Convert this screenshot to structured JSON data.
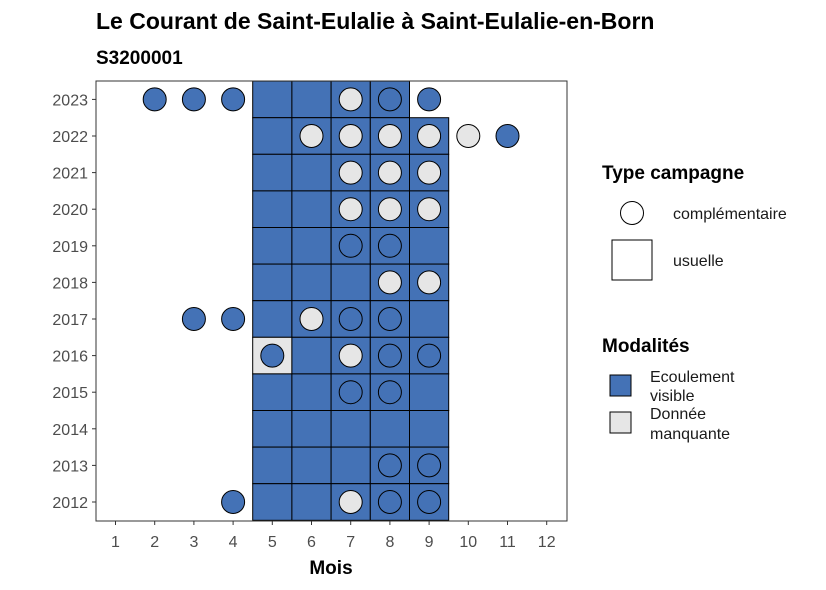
{
  "chart_data": {
    "type": "heatmap",
    "title": "Le Courant de Saint-Eulalie à Saint-Eulalie-en-Born",
    "subtitle": "S3200001",
    "xlabel": "Mois",
    "ylabel": "",
    "x_ticks": [
      1,
      2,
      3,
      4,
      5,
      6,
      7,
      8,
      9,
      10,
      11,
      12
    ],
    "y_ticks": [
      2012,
      2013,
      2014,
      2015,
      2016,
      2017,
      2018,
      2019,
      2020,
      2021,
      2022,
      2023
    ],
    "grid": false,
    "legend_position": "right",
    "colors": {
      "ecoulement_visible": "#4472b6",
      "donnee_manquante": "#e6e6e6",
      "outline": "#000000"
    },
    "legend_type": {
      "title": "Type campagne",
      "items": [
        {
          "shape": "circle",
          "label": "complémentaire"
        },
        {
          "shape": "square",
          "label": "usuelle"
        }
      ]
    },
    "legend_modalites": {
      "title": "Modalités",
      "items": [
        {
          "color": "#4472b6",
          "label_lines": [
            "Ecoulement",
            "visible"
          ]
        },
        {
          "color": "#e6e6e6",
          "label_lines": [
            "Donnée",
            "manquante"
          ]
        }
      ]
    },
    "usuelle": [
      {
        "year": 2023,
        "month": 5,
        "modalite": "ecoulement_visible"
      },
      {
        "year": 2023,
        "month": 6,
        "modalite": "ecoulement_visible"
      },
      {
        "year": 2023,
        "month": 7,
        "modalite": "ecoulement_visible"
      },
      {
        "year": 2023,
        "month": 8,
        "modalite": "ecoulement_visible"
      },
      {
        "year": 2022,
        "month": 5,
        "modalite": "ecoulement_visible"
      },
      {
        "year": 2022,
        "month": 6,
        "modalite": "ecoulement_visible"
      },
      {
        "year": 2022,
        "month": 7,
        "modalite": "ecoulement_visible"
      },
      {
        "year": 2022,
        "month": 8,
        "modalite": "ecoulement_visible"
      },
      {
        "year": 2022,
        "month": 9,
        "modalite": "ecoulement_visible"
      },
      {
        "year": 2021,
        "month": 5,
        "modalite": "ecoulement_visible"
      },
      {
        "year": 2021,
        "month": 6,
        "modalite": "ecoulement_visible"
      },
      {
        "year": 2021,
        "month": 7,
        "modalite": "ecoulement_visible"
      },
      {
        "year": 2021,
        "month": 8,
        "modalite": "ecoulement_visible"
      },
      {
        "year": 2021,
        "month": 9,
        "modalite": "ecoulement_visible"
      },
      {
        "year": 2020,
        "month": 5,
        "modalite": "ecoulement_visible"
      },
      {
        "year": 2020,
        "month": 6,
        "modalite": "ecoulement_visible"
      },
      {
        "year": 2020,
        "month": 7,
        "modalite": "ecoulement_visible"
      },
      {
        "year": 2020,
        "month": 8,
        "modalite": "ecoulement_visible"
      },
      {
        "year": 2020,
        "month": 9,
        "modalite": "ecoulement_visible"
      },
      {
        "year": 2019,
        "month": 5,
        "modalite": "ecoulement_visible"
      },
      {
        "year": 2019,
        "month": 6,
        "modalite": "ecoulement_visible"
      },
      {
        "year": 2019,
        "month": 7,
        "modalite": "ecoulement_visible"
      },
      {
        "year": 2019,
        "month": 8,
        "modalite": "ecoulement_visible"
      },
      {
        "year": 2019,
        "month": 9,
        "modalite": "ecoulement_visible"
      },
      {
        "year": 2018,
        "month": 5,
        "modalite": "ecoulement_visible"
      },
      {
        "year": 2018,
        "month": 6,
        "modalite": "ecoulement_visible"
      },
      {
        "year": 2018,
        "month": 7,
        "modalite": "ecoulement_visible"
      },
      {
        "year": 2018,
        "month": 8,
        "modalite": "ecoulement_visible"
      },
      {
        "year": 2018,
        "month": 9,
        "modalite": "ecoulement_visible"
      },
      {
        "year": 2017,
        "month": 5,
        "modalite": "ecoulement_visible"
      },
      {
        "year": 2017,
        "month": 6,
        "modalite": "ecoulement_visible"
      },
      {
        "year": 2017,
        "month": 7,
        "modalite": "ecoulement_visible"
      },
      {
        "year": 2017,
        "month": 8,
        "modalite": "ecoulement_visible"
      },
      {
        "year": 2017,
        "month": 9,
        "modalite": "ecoulement_visible"
      },
      {
        "year": 2016,
        "month": 5,
        "modalite": "donnee_manquante"
      },
      {
        "year": 2016,
        "month": 6,
        "modalite": "ecoulement_visible"
      },
      {
        "year": 2016,
        "month": 7,
        "modalite": "ecoulement_visible"
      },
      {
        "year": 2016,
        "month": 8,
        "modalite": "ecoulement_visible"
      },
      {
        "year": 2016,
        "month": 9,
        "modalite": "ecoulement_visible"
      },
      {
        "year": 2015,
        "month": 5,
        "modalite": "ecoulement_visible"
      },
      {
        "year": 2015,
        "month": 6,
        "modalite": "ecoulement_visible"
      },
      {
        "year": 2015,
        "month": 7,
        "modalite": "ecoulement_visible"
      },
      {
        "year": 2015,
        "month": 8,
        "modalite": "ecoulement_visible"
      },
      {
        "year": 2015,
        "month": 9,
        "modalite": "ecoulement_visible"
      },
      {
        "year": 2014,
        "month": 5,
        "modalite": "ecoulement_visible"
      },
      {
        "year": 2014,
        "month": 6,
        "modalite": "ecoulement_visible"
      },
      {
        "year": 2014,
        "month": 7,
        "modalite": "ecoulement_visible"
      },
      {
        "year": 2014,
        "month": 8,
        "modalite": "ecoulement_visible"
      },
      {
        "year": 2014,
        "month": 9,
        "modalite": "ecoulement_visible"
      },
      {
        "year": 2013,
        "month": 5,
        "modalite": "ecoulement_visible"
      },
      {
        "year": 2013,
        "month": 6,
        "modalite": "ecoulement_visible"
      },
      {
        "year": 2013,
        "month": 7,
        "modalite": "ecoulement_visible"
      },
      {
        "year": 2013,
        "month": 8,
        "modalite": "ecoulement_visible"
      },
      {
        "year": 2013,
        "month": 9,
        "modalite": "ecoulement_visible"
      },
      {
        "year": 2012,
        "month": 5,
        "modalite": "ecoulement_visible"
      },
      {
        "year": 2012,
        "month": 6,
        "modalite": "ecoulement_visible"
      },
      {
        "year": 2012,
        "month": 7,
        "modalite": "ecoulement_visible"
      },
      {
        "year": 2012,
        "month": 8,
        "modalite": "ecoulement_visible"
      },
      {
        "year": 2012,
        "month": 9,
        "modalite": "ecoulement_visible"
      }
    ],
    "complementaire": [
      {
        "year": 2023,
        "month": 2,
        "modalite": "ecoulement_visible"
      },
      {
        "year": 2023,
        "month": 3,
        "modalite": "ecoulement_visible"
      },
      {
        "year": 2023,
        "month": 4,
        "modalite": "ecoulement_visible"
      },
      {
        "year": 2023,
        "month": 7,
        "modalite": "donnee_manquante"
      },
      {
        "year": 2023,
        "month": 8,
        "modalite": "ecoulement_visible"
      },
      {
        "year": 2023,
        "month": 9,
        "modalite": "ecoulement_visible"
      },
      {
        "year": 2022,
        "month": 6,
        "modalite": "donnee_manquante"
      },
      {
        "year": 2022,
        "month": 7,
        "modalite": "donnee_manquante"
      },
      {
        "year": 2022,
        "month": 8,
        "modalite": "donnee_manquante"
      },
      {
        "year": 2022,
        "month": 9,
        "modalite": "donnee_manquante"
      },
      {
        "year": 2022,
        "month": 10,
        "modalite": "donnee_manquante"
      },
      {
        "year": 2022,
        "month": 11,
        "modalite": "ecoulement_visible"
      },
      {
        "year": 2021,
        "month": 7,
        "modalite": "donnee_manquante"
      },
      {
        "year": 2021,
        "month": 8,
        "modalite": "donnee_manquante"
      },
      {
        "year": 2021,
        "month": 9,
        "modalite": "donnee_manquante"
      },
      {
        "year": 2020,
        "month": 7,
        "modalite": "donnee_manquante"
      },
      {
        "year": 2020,
        "month": 8,
        "modalite": "donnee_manquante"
      },
      {
        "year": 2020,
        "month": 9,
        "modalite": "donnee_manquante"
      },
      {
        "year": 2019,
        "month": 7,
        "modalite": "ecoulement_visible"
      },
      {
        "year": 2019,
        "month": 8,
        "modalite": "ecoulement_visible"
      },
      {
        "year": 2018,
        "month": 8,
        "modalite": "donnee_manquante"
      },
      {
        "year": 2018,
        "month": 9,
        "modalite": "donnee_manquante"
      },
      {
        "year": 2017,
        "month": 3,
        "modalite": "ecoulement_visible"
      },
      {
        "year": 2017,
        "month": 4,
        "modalite": "ecoulement_visible"
      },
      {
        "year": 2017,
        "month": 6,
        "modalite": "donnee_manquante"
      },
      {
        "year": 2017,
        "month": 7,
        "modalite": "ecoulement_visible"
      },
      {
        "year": 2017,
        "month": 8,
        "modalite": "ecoulement_visible"
      },
      {
        "year": 2016,
        "month": 5,
        "modalite": "ecoulement_visible"
      },
      {
        "year": 2016,
        "month": 7,
        "modalite": "donnee_manquante"
      },
      {
        "year": 2016,
        "month": 8,
        "modalite": "ecoulement_visible"
      },
      {
        "year": 2016,
        "month": 9,
        "modalite": "ecoulement_visible"
      },
      {
        "year": 2015,
        "month": 7,
        "modalite": "ecoulement_visible"
      },
      {
        "year": 2015,
        "month": 8,
        "modalite": "ecoulement_visible"
      },
      {
        "year": 2013,
        "month": 8,
        "modalite": "ecoulement_visible"
      },
      {
        "year": 2013,
        "month": 9,
        "modalite": "ecoulement_visible"
      },
      {
        "year": 2012,
        "month": 4,
        "modalite": "ecoulement_visible"
      },
      {
        "year": 2012,
        "month": 7,
        "modalite": "donnee_manquante"
      },
      {
        "year": 2012,
        "month": 8,
        "modalite": "ecoulement_visible"
      },
      {
        "year": 2012,
        "month": 9,
        "modalite": "ecoulement_visible"
      }
    ]
  }
}
